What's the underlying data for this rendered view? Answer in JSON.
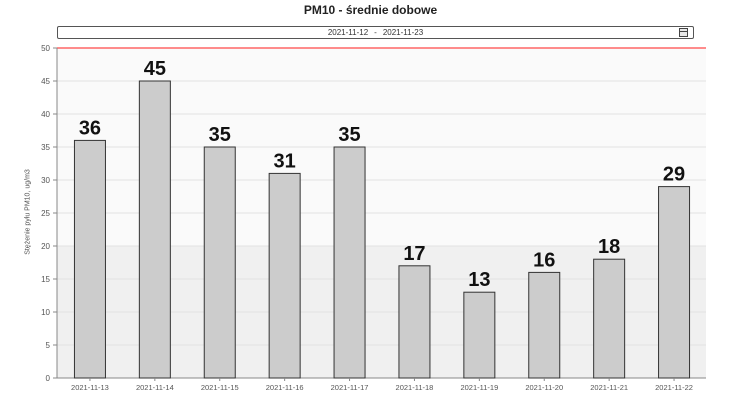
{
  "title": "PM10 - średnie dobowe",
  "date_range": {
    "from": "2021-11-12",
    "separator": "-",
    "to": "2021-11-23",
    "icon": "calendar-icon"
  },
  "chart_data": {
    "type": "bar",
    "title": "PM10 - średnie dobowe",
    "ylabel": "Stężenie pyłu PM10, ug/m3",
    "xlabel": "",
    "ylim": [
      0,
      50
    ],
    "yticks": [
      0,
      5,
      10,
      15,
      20,
      25,
      30,
      35,
      40,
      45,
      50
    ],
    "threshold": {
      "value": 50,
      "color": "#ff6666"
    },
    "categories": [
      "2021-11-13",
      "2021-11-14",
      "2021-11-15",
      "2021-11-16",
      "2021-11-17",
      "2021-11-18",
      "2021-11-19",
      "2021-11-20",
      "2021-11-21",
      "2021-11-22"
    ],
    "values": [
      36,
      45,
      35,
      31,
      35,
      17,
      13,
      16,
      18,
      29
    ],
    "bar_color": "#cccccc",
    "bar_stroke": "#333333",
    "grid": true
  }
}
